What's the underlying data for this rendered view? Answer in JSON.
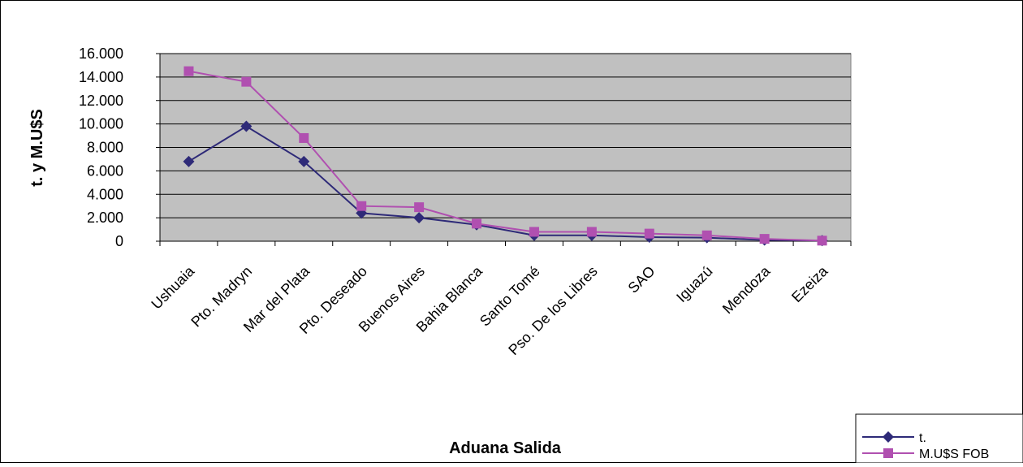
{
  "chart_data": {
    "type": "line",
    "title": "",
    "xlabel": "Aduana Salida",
    "ylabel": "t. y M.U$S",
    "ylim": [
      0,
      16000
    ],
    "yticks": [
      0,
      2000,
      4000,
      6000,
      8000,
      10000,
      12000,
      14000,
      16000
    ],
    "ytick_labels": [
      "0",
      "2.000",
      "4.000",
      "6.000",
      "8.000",
      "10.000",
      "12.000",
      "14.000",
      "16.000"
    ],
    "categories": [
      "Ushuaia",
      "Pto. Madryn",
      "Mar del Plata",
      "Pto. Deseado",
      "Buenos Aires",
      "Bahia Blanca",
      "Santo Tomé",
      "Pso. De los Libres",
      "SAO",
      "Iguazú",
      "Mendoza",
      "Ezeiza"
    ],
    "series": [
      {
        "name": "t.",
        "color": "#2e2a78",
        "marker": "diamond",
        "values": [
          6800,
          9800,
          6800,
          2400,
          2000,
          1400,
          500,
          500,
          350,
          300,
          100,
          50
        ]
      },
      {
        "name": "M.U$S FOB",
        "color": "#b050b0",
        "marker": "square",
        "values": [
          14500,
          13600,
          8800,
          3000,
          2900,
          1500,
          800,
          800,
          650,
          500,
          200,
          50
        ]
      }
    ],
    "grid": true,
    "plot_background": "#c0c0c0",
    "legend_position": "bottom-right"
  }
}
